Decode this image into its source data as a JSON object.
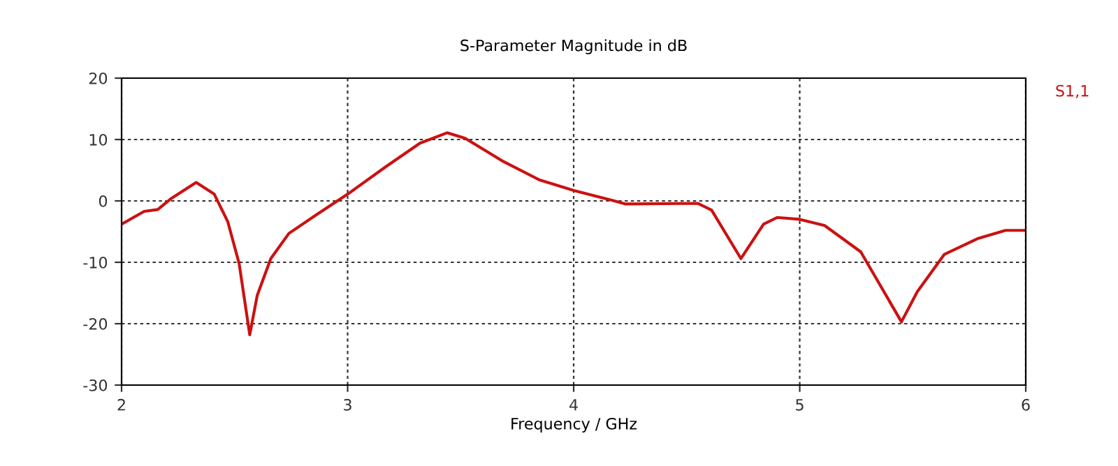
{
  "chart_data": {
    "type": "line",
    "title": "S-Parameter Magnitude in dB",
    "xlabel": "Frequency / GHz",
    "xlim": [
      2,
      6
    ],
    "xticks": [
      2,
      3,
      4,
      5,
      6
    ],
    "ylim": [
      -30,
      20
    ],
    "yticks": [
      -30,
      -20,
      -10,
      0,
      10,
      20
    ],
    "grid": true,
    "line_style": "solid",
    "marker": "none",
    "series": [
      {
        "name": "S1,1",
        "color": "#cc1111",
        "x": [
          2.0,
          2.1,
          2.16,
          2.22,
          2.33,
          2.41,
          2.47,
          2.52,
          2.567,
          2.6,
          2.66,
          2.74,
          2.86,
          3.0,
          3.17,
          3.32,
          3.44,
          3.52,
          3.69,
          3.85,
          4.0,
          4.18,
          4.23,
          4.55,
          4.61,
          4.74,
          4.84,
          4.9,
          5.0,
          5.11,
          5.27,
          5.45,
          5.52,
          5.64,
          5.79,
          5.91,
          6.0
        ],
        "values": [
          -3.8,
          -1.7,
          -1.4,
          0.4,
          3.0,
          1.1,
          -3.4,
          -10.2,
          -21.8,
          -15.4,
          -9.4,
          -5.3,
          -2.3,
          1.1,
          5.6,
          9.4,
          11.1,
          10.2,
          6.4,
          3.4,
          1.7,
          0,
          -0.5,
          -0.4,
          -1.5,
          -9.4,
          -3.8,
          -2.7,
          -3.0,
          -4.0,
          -8.3,
          -19.7,
          -14.8,
          -8.7,
          -6.1,
          -4.8,
          -4.8
        ]
      }
    ]
  }
}
